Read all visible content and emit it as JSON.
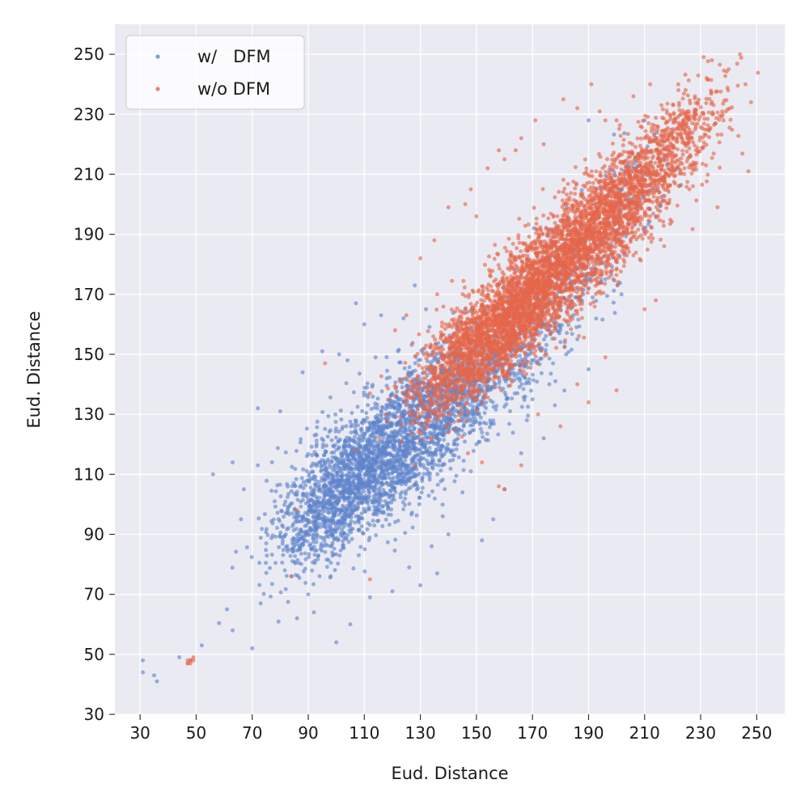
{
  "chart_data": {
    "type": "scatter",
    "xlabel": "Eud. Distance",
    "ylabel": "Eud. Distance",
    "xlim": [
      21,
      260
    ],
    "ylim": [
      30,
      260
    ],
    "xticks": [
      30,
      50,
      70,
      90,
      110,
      130,
      150,
      170,
      190,
      210,
      230,
      250
    ],
    "yticks": [
      30,
      50,
      70,
      90,
      110,
      130,
      150,
      170,
      190,
      210,
      230,
      250
    ],
    "grid": true,
    "legend_position": "top-left",
    "series": [
      {
        "name": "w/   DFM",
        "color": "#5f84cc",
        "points": [
          [
            31,
            48
          ],
          [
            31,
            44
          ],
          [
            35,
            43
          ],
          [
            36,
            41
          ],
          [
            44,
            49
          ],
          [
            52,
            53
          ],
          [
            56,
            110
          ],
          [
            63,
            114
          ],
          [
            61,
            65
          ],
          [
            63,
            58
          ],
          [
            66,
            95
          ],
          [
            67,
            105
          ],
          [
            70,
            52
          ],
          [
            72,
            113
          ],
          [
            73,
            67
          ],
          [
            72,
            132
          ],
          [
            75,
            87
          ],
          [
            78,
            101
          ],
          [
            80,
            131
          ],
          [
            82,
            90
          ],
          [
            84,
            76
          ],
          [
            86,
            62
          ],
          [
            88,
            144
          ],
          [
            90,
            70
          ],
          [
            92,
            64
          ],
          [
            93,
            120
          ],
          [
            95,
            151
          ],
          [
            96,
            99
          ],
          [
            98,
            76
          ],
          [
            100,
            54
          ],
          [
            101,
            150
          ],
          [
            104,
            148
          ],
          [
            105,
            60
          ],
          [
            107,
            167
          ],
          [
            108,
            83
          ],
          [
            110,
            160
          ],
          [
            112,
            69
          ],
          [
            114,
            149
          ],
          [
            116,
            163
          ],
          [
            118,
            142
          ],
          [
            120,
            71
          ],
          [
            122,
            151
          ],
          [
            124,
            162
          ],
          [
            126,
            79
          ],
          [
            128,
            173
          ],
          [
            130,
            73
          ],
          [
            132,
            165
          ],
          [
            134,
            86
          ],
          [
            136,
            77
          ],
          [
            138,
            96
          ],
          [
            140,
            90
          ],
          [
            142,
            120
          ],
          [
            145,
            104
          ],
          [
            148,
            111
          ],
          [
            150,
            120
          ],
          [
            152,
            88
          ],
          [
            156,
            95
          ],
          [
            160,
            105
          ],
          [
            162,
            131
          ],
          [
            166,
            117
          ],
          [
            168,
            128
          ],
          [
            170,
            135
          ],
          [
            174,
            122
          ],
          [
            176,
            140
          ],
          [
            178,
            133
          ],
          [
            182,
            150
          ],
          [
            186,
            155
          ],
          [
            190,
            145
          ],
          [
            196,
            175
          ],
          [
            200,
            190
          ],
          [
            204,
            207
          ],
          [
            210,
            228
          ],
          [
            214,
            196
          ],
          [
            190,
            228
          ]
        ],
        "clusters": [
          {
            "cx": 113,
            "cy": 113,
            "sx": 14,
            "sy": 12,
            "rho": 0.5,
            "n": 1500
          },
          {
            "cx": 135,
            "cy": 132,
            "sx": 13,
            "sy": 12,
            "rho": 0.55,
            "n": 900
          },
          {
            "cx": 96,
            "cy": 98,
            "sx": 10,
            "sy": 11,
            "rho": 0.55,
            "n": 550
          },
          {
            "cx": 158,
            "cy": 146,
            "sx": 11,
            "sy": 10,
            "rho": 0.5,
            "n": 400
          },
          {
            "cx": 185,
            "cy": 178,
            "sx": 11,
            "sy": 12,
            "rho": 0.6,
            "n": 220
          },
          {
            "cx": 205,
            "cy": 205,
            "sx": 8,
            "sy": 9,
            "rho": 0.5,
            "n": 80
          }
        ]
      },
      {
        "name": "w/o DFM",
        "color": "#e5664a",
        "points": [
          [
            47,
            47
          ],
          [
            47,
            47
          ],
          [
            48,
            48
          ],
          [
            48,
            48
          ],
          [
            49,
            49
          ],
          [
            48,
            47
          ],
          [
            47,
            48
          ],
          [
            49,
            48
          ],
          [
            84,
            76
          ],
          [
            112,
            75
          ],
          [
            86,
            98
          ],
          [
            96,
            147
          ],
          [
            112,
            137
          ],
          [
            119,
            135
          ],
          [
            121,
            158
          ],
          [
            125,
            163
          ],
          [
            130,
            182
          ],
          [
            135,
            188
          ],
          [
            136,
            170
          ],
          [
            140,
            199
          ],
          [
            146,
            200
          ],
          [
            148,
            205
          ],
          [
            150,
            196
          ],
          [
            154,
            212
          ],
          [
            158,
            218
          ],
          [
            160,
            215
          ],
          [
            164,
            218
          ],
          [
            166,
            222
          ],
          [
            171,
            228
          ],
          [
            174,
            220
          ],
          [
            181,
            235
          ],
          [
            186,
            232
          ],
          [
            191,
            240
          ],
          [
            194,
            231
          ],
          [
            196,
            228
          ],
          [
            200,
            228
          ],
          [
            206,
            236
          ],
          [
            212,
            240
          ],
          [
            216,
            233
          ],
          [
            222,
            240
          ],
          [
            225,
            227
          ],
          [
            228,
            236
          ],
          [
            231,
            230
          ],
          [
            234,
            248
          ],
          [
            240,
            245
          ],
          [
            244,
            250
          ],
          [
            246,
            240
          ],
          [
            248,
            234
          ],
          [
            247,
            211
          ],
          [
            236,
            199
          ],
          [
            226,
            205
          ],
          [
            222,
            212
          ],
          [
            217,
            186
          ],
          [
            214,
            168
          ],
          [
            210,
            165
          ],
          [
            206,
            183
          ],
          [
            200,
            138
          ],
          [
            196,
            149
          ],
          [
            190,
            134
          ],
          [
            186,
            140
          ],
          [
            180,
            126
          ],
          [
            172,
            130
          ],
          [
            166,
            113
          ],
          [
            160,
            105
          ],
          [
            158,
            106
          ],
          [
            152,
            114
          ],
          [
            147,
            117
          ],
          [
            140,
            124
          ],
          [
            134,
            122
          ],
          [
            129,
            132
          ],
          [
            126,
            136
          ]
        ],
        "clusters": [
          {
            "cx": 183,
            "cy": 183,
            "sx": 14,
            "sy": 14,
            "rho": 0.75,
            "n": 1800
          },
          {
            "cx": 160,
            "cy": 160,
            "sx": 12,
            "sy": 12,
            "rho": 0.72,
            "n": 1500
          },
          {
            "cx": 205,
            "cy": 204,
            "sx": 12,
            "sy": 12,
            "rho": 0.7,
            "n": 900
          },
          {
            "cx": 142,
            "cy": 147,
            "sx": 10,
            "sy": 11,
            "rho": 0.68,
            "n": 600
          },
          {
            "cx": 225,
            "cy": 225,
            "sx": 9,
            "sy": 9,
            "rho": 0.6,
            "n": 250
          }
        ]
      }
    ]
  }
}
